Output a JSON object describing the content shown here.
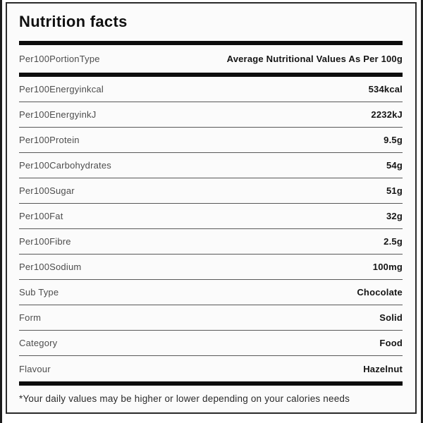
{
  "title": "Nutrition facts",
  "header_row": {
    "label": "Per100PortionType",
    "value": "Average Nutritional Values As Per 100g"
  },
  "rows": [
    {
      "label": "Per100Energyinkcal",
      "value": "534kcal"
    },
    {
      "label": "Per100EnergyinkJ",
      "value": "2232kJ"
    },
    {
      "label": "Per100Protein",
      "value": "9.5g"
    },
    {
      "label": "Per100Carbohydrates",
      "value": "54g"
    },
    {
      "label": "Per100Sugar",
      "value": "51g"
    },
    {
      "label": "Per100Fat",
      "value": "32g"
    },
    {
      "label": "Per100Fibre",
      "value": "2.5g"
    },
    {
      "label": "Per100Sodium",
      "value": "100mg"
    },
    {
      "label": "Sub Type",
      "value": "Chocolate"
    },
    {
      "label": "Form",
      "value": "Solid"
    },
    {
      "label": "Category",
      "value": "Food"
    },
    {
      "label": "Flavour",
      "value": "Hazelnut"
    }
  ],
  "footnote": "*Your daily values may be higher or lower depending on your calories needs",
  "colors": {
    "page_background": "#ffffff",
    "card_background": "#fbfbfb",
    "card_border": "#2a2a2a",
    "thick_bar": "#0d0d0d",
    "separator": "#585858",
    "label_text": "#4d4d4d",
    "value_text": "#141414",
    "edge_strip": "#1c1c1c"
  }
}
